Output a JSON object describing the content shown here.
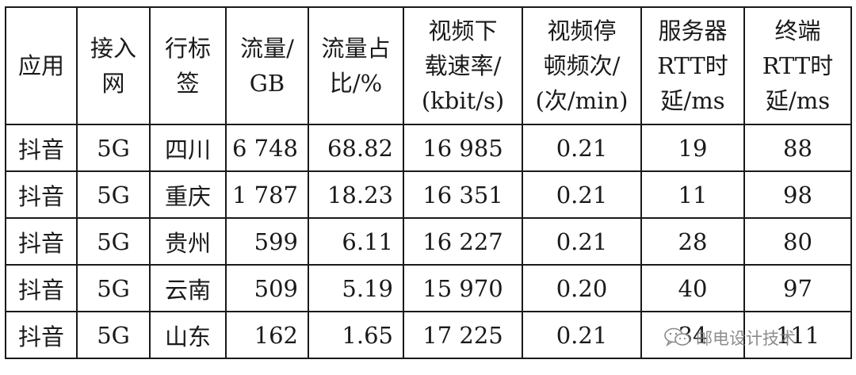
{
  "table": {
    "headers": [
      [
        "应用"
      ],
      [
        "接入",
        "网"
      ],
      [
        "行标",
        "签"
      ],
      [
        "流量/",
        "GB"
      ],
      [
        "流量占",
        "比/%"
      ],
      [
        "视频下",
        "载速率/",
        "(kbit/s)"
      ],
      [
        "视频停",
        "顿频次/",
        "(次/min)"
      ],
      [
        "服务器",
        "RTT时",
        "延/ms"
      ],
      [
        "终端",
        "RTT时",
        "延/ms"
      ]
    ],
    "rows": [
      [
        "抖音",
        "5G",
        "四川",
        "6 748",
        "68.82",
        "16 985",
        "0.21",
        "19",
        "88"
      ],
      [
        "抖音",
        "5G",
        "重庆",
        "1 787",
        "18.23",
        "16 351",
        "0.21",
        "11",
        "98"
      ],
      [
        "抖音",
        "5G",
        "贵州",
        "599",
        "6.11",
        "16 227",
        "0.21",
        "28",
        "80"
      ],
      [
        "抖音",
        "5G",
        "云南",
        "509",
        "5.19",
        "15 970",
        "0.20",
        "40",
        "97"
      ],
      [
        "抖音",
        "5G",
        "山东",
        "162",
        "1.65",
        "17 225",
        "0.21",
        "34",
        "111"
      ]
    ]
  },
  "watermark": {
    "text": "邮电设计技术",
    "icon": "wechat-icon"
  }
}
